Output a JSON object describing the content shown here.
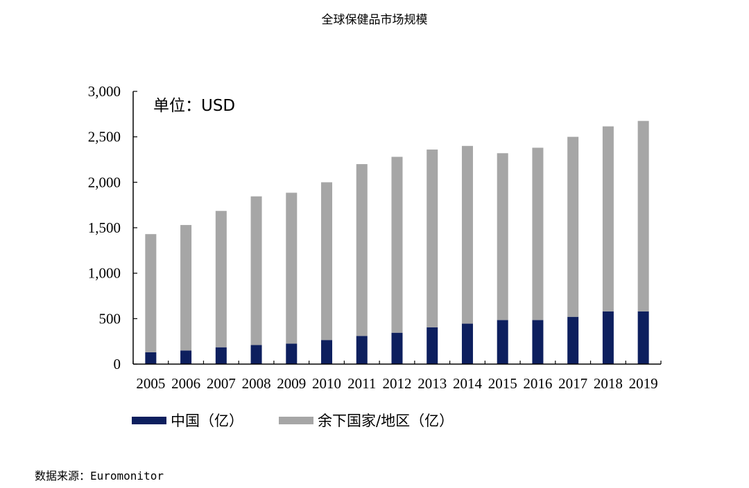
{
  "chart_data": {
    "type": "bar",
    "stacked": true,
    "title": "全球保健品市场规模",
    "unit_label": "单位：USD",
    "categories": [
      "2005",
      "2006",
      "2007",
      "2008",
      "2009",
      "2010",
      "2011",
      "2012",
      "2013",
      "2014",
      "2015",
      "2016",
      "2017",
      "2018",
      "2019"
    ],
    "series": [
      {
        "name": "中国（亿）",
        "color": "#0d1f5e",
        "values": [
          130,
          150,
          185,
          210,
          225,
          265,
          310,
          345,
          405,
          445,
          485,
          485,
          520,
          580,
          580
        ]
      },
      {
        "name": "余下国家/地区（亿）",
        "color": "#a6a6a6",
        "values": [
          1300,
          1380,
          1500,
          1635,
          1660,
          1735,
          1890,
          1935,
          1955,
          1955,
          1835,
          1895,
          1980,
          2035,
          2095
        ]
      }
    ],
    "ylim": [
      0,
      3000
    ],
    "yticks": [
      "0",
      "500",
      "1,000",
      "1,500",
      "2,000",
      "2,500",
      "3,000"
    ],
    "ytick_values": [
      0,
      500,
      1000,
      1500,
      2000,
      2500,
      3000
    ],
    "grid": false,
    "legend_position": "bottom"
  },
  "source": "数据来源：Euromonitor"
}
